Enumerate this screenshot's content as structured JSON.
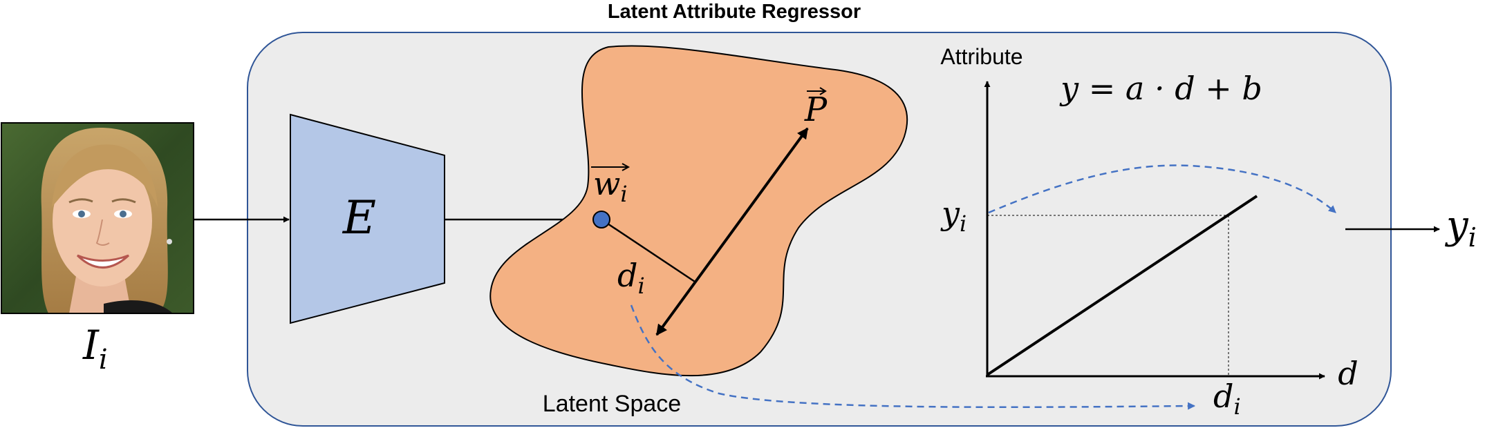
{
  "title": "Latent Attribute Regressor",
  "input_label": {
    "main": "I",
    "sub": "i"
  },
  "encoder_label": "E",
  "latent_space_label": "Latent Space",
  "latent_vector_label": {
    "main": "w",
    "sub": "i"
  },
  "direction_label": "P",
  "distance_label": {
    "main": "d",
    "sub": "i"
  },
  "plot": {
    "y_axis_label": "Attribute",
    "x_axis_label": "d",
    "equation": "y = a · d + b",
    "y_tick_label": {
      "main": "y",
      "sub": "i"
    },
    "x_tick_label": {
      "main": "d",
      "sub": "i"
    }
  },
  "output_label": {
    "main": "y",
    "sub": "i"
  },
  "colors": {
    "panel_fill": "#ececec",
    "panel_border": "#2f5597",
    "encoder_fill": "#b4c7e7",
    "latent_space_fill": "#f4b183",
    "dashed_arrow": "#4472c4",
    "latent_point": "#4472c4"
  }
}
